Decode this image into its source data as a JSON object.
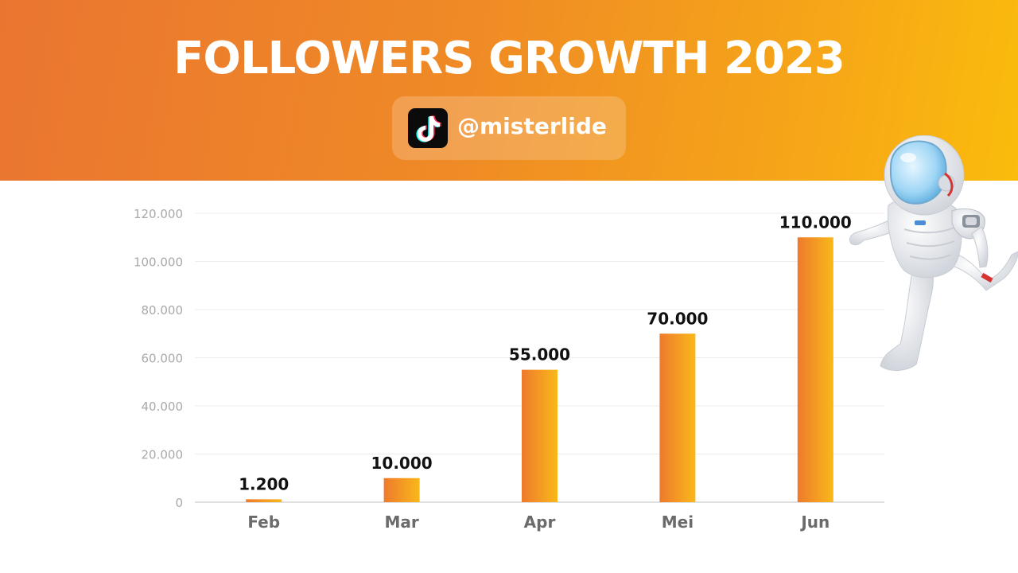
{
  "header": {
    "title": "FOLLOWERS GROWTH 2023",
    "handle": "@misterlide",
    "brand_colors": {
      "start": "#ea7530",
      "end": "#fbbc0c"
    }
  },
  "chart_data": {
    "type": "bar",
    "title": "FOLLOWERS GROWTH 2023",
    "xlabel": "",
    "ylabel": "",
    "categories": [
      "Feb",
      "Mar",
      "Apr",
      "Mei",
      "Jun"
    ],
    "values": [
      1200,
      10000,
      55000,
      70000,
      110000
    ],
    "value_labels": [
      "1.200",
      "10.000",
      "55.000",
      "70.000",
      "110.000"
    ],
    "ylim": [
      0,
      120000
    ],
    "yticks": [
      0,
      20000,
      40000,
      60000,
      80000,
      100000,
      120000
    ],
    "ytick_labels": [
      "0",
      "20.000",
      "40.000",
      "60.000",
      "80.000",
      "100.000",
      "120.000"
    ],
    "grid": true,
    "legend": "none",
    "bar_color_start": "#ee7a2c",
    "bar_color_end": "#f9b81a"
  }
}
